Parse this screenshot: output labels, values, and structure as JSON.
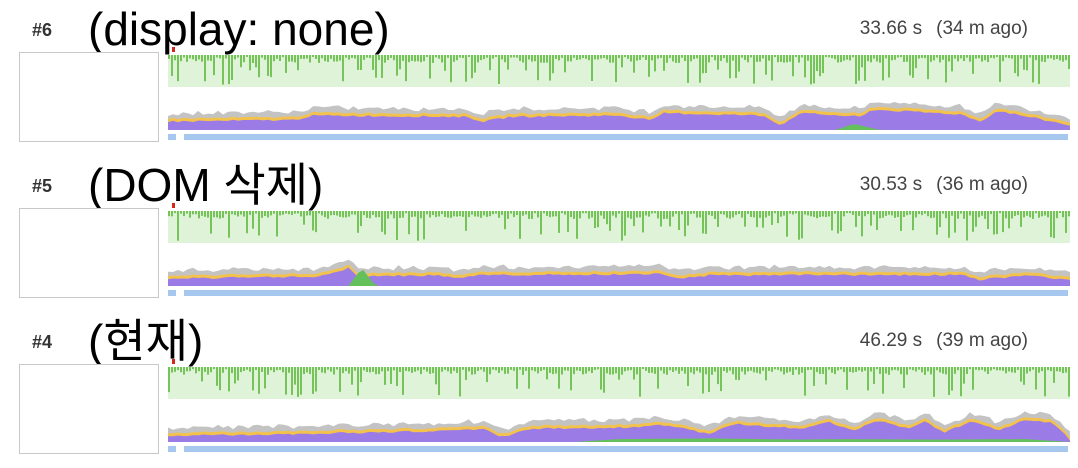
{
  "recordings": [
    {
      "num": "#6",
      "title": "(display: none)",
      "duration": "33.66 s",
      "ago": "(34 m ago)",
      "seed": 6,
      "profile": [
        [
          0,
          0.35
        ],
        [
          0.14,
          0.42
        ],
        [
          0.16,
          0.6
        ],
        [
          0.33,
          0.55
        ],
        [
          0.35,
          0.35
        ],
        [
          0.38,
          0.55
        ],
        [
          0.5,
          0.6
        ],
        [
          0.53,
          0.45
        ],
        [
          0.54,
          0.45
        ],
        [
          0.55,
          0.7
        ],
        [
          0.66,
          0.6
        ],
        [
          0.68,
          0.2
        ],
        [
          0.7,
          0.7
        ],
        [
          0.77,
          0.55
        ],
        [
          0.78,
          0.85
        ],
        [
          0.88,
          0.65
        ],
        [
          0.9,
          0.35
        ],
        [
          0.92,
          0.8
        ],
        [
          1,
          0.2
        ]
      ],
      "green": [
        [
          0.74,
          0.0
        ],
        [
          0.76,
          0.25
        ],
        [
          0.79,
          0.0
        ]
      ],
      "colors": {
        "fps": "#76c35a",
        "fps_bg": "#dff3d8",
        "gray": "#c3c3c3",
        "yellow": "#f3c24d",
        "purple": "#9b7ce6",
        "green": "#64c05a",
        "blue": "#a6c8ef"
      }
    },
    {
      "num": "#5",
      "title": "(DOM 삭제)",
      "duration": "30.53 s",
      "ago": "(36 m ago)",
      "seed": 5,
      "profile": [
        [
          0,
          0.3
        ],
        [
          0.17,
          0.4
        ],
        [
          0.2,
          0.75
        ],
        [
          0.21,
          0.4
        ],
        [
          0.3,
          0.45
        ],
        [
          0.32,
          0.3
        ],
        [
          0.34,
          0.45
        ],
        [
          0.55,
          0.5
        ],
        [
          0.57,
          0.3
        ],
        [
          0.6,
          0.45
        ],
        [
          0.88,
          0.45
        ],
        [
          0.9,
          0.25
        ],
        [
          0.95,
          0.45
        ],
        [
          1,
          0.25
        ]
      ],
      "green": [
        [
          0.2,
          0.0
        ],
        [
          0.215,
          0.75
        ],
        [
          0.23,
          0.0
        ]
      ],
      "colors": {
        "fps": "#76c35a",
        "fps_bg": "#dff3d8",
        "gray": "#c3c3c3",
        "yellow": "#f3c24d",
        "purple": "#9b7ce6",
        "green": "#64c05a",
        "blue": "#a6c8ef"
      }
    },
    {
      "num": "#4",
      "title": "(현재)",
      "duration": "46.29 s",
      "ago": "(39 m ago)",
      "seed": 4,
      "profile": [
        [
          0,
          0.25
        ],
        [
          0.16,
          0.35
        ],
        [
          0.3,
          0.45
        ],
        [
          0.35,
          0.55
        ],
        [
          0.37,
          0.2
        ],
        [
          0.4,
          0.55
        ],
        [
          0.5,
          0.6
        ],
        [
          0.55,
          0.7
        ],
        [
          0.6,
          0.35
        ],
        [
          0.63,
          0.75
        ],
        [
          0.7,
          0.55
        ],
        [
          0.73,
          0.85
        ],
        [
          0.76,
          0.5
        ],
        [
          0.79,
          0.9
        ],
        [
          0.82,
          0.55
        ],
        [
          0.84,
          0.85
        ],
        [
          0.86,
          0.4
        ],
        [
          0.89,
          0.85
        ],
        [
          0.92,
          0.5
        ],
        [
          0.95,
          0.9
        ],
        [
          0.98,
          0.8
        ],
        [
          1,
          0.1
        ]
      ],
      "green": [
        [
          0.45,
          0.0
        ],
        [
          0.5,
          0.12
        ],
        [
          0.6,
          0.15
        ],
        [
          0.7,
          0.1
        ],
        [
          0.75,
          0.12
        ],
        [
          0.85,
          0.1
        ],
        [
          0.95,
          0.12
        ],
        [
          1,
          0.0
        ]
      ],
      "colors": {
        "fps": "#76c35a",
        "fps_bg": "#dff3d8",
        "gray": "#c3c3c3",
        "yellow": "#f3c24d",
        "purple": "#9b7ce6",
        "green": "#64c05a",
        "blue": "#a6c8ef"
      }
    }
  ]
}
